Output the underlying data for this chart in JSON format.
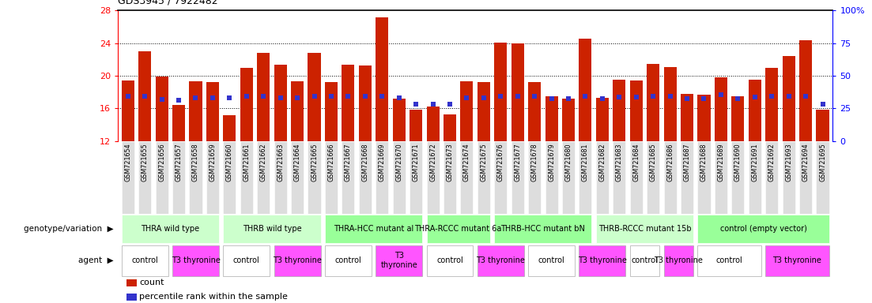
{
  "title": "GDS3945 / 7922482",
  "samples": [
    "GSM721654",
    "GSM721655",
    "GSM721656",
    "GSM721657",
    "GSM721658",
    "GSM721659",
    "GSM721660",
    "GSM721661",
    "GSM721662",
    "GSM721663",
    "GSM721664",
    "GSM721665",
    "GSM721666",
    "GSM721667",
    "GSM721668",
    "GSM721669",
    "GSM721670",
    "GSM721671",
    "GSM721672",
    "GSM721673",
    "GSM721674",
    "GSM721675",
    "GSM721676",
    "GSM721677",
    "GSM721678",
    "GSM721679",
    "GSM721680",
    "GSM721681",
    "GSM721682",
    "GSM721683",
    "GSM721684",
    "GSM721685",
    "GSM721686",
    "GSM721687",
    "GSM721688",
    "GSM721689",
    "GSM721690",
    "GSM721691",
    "GSM721692",
    "GSM721693",
    "GSM721694",
    "GSM721695"
  ],
  "bar_values": [
    19.4,
    23.0,
    19.9,
    16.4,
    19.3,
    19.2,
    15.2,
    21.0,
    22.8,
    21.4,
    19.3,
    22.8,
    19.2,
    21.4,
    21.3,
    27.2,
    17.2,
    15.8,
    16.2,
    15.3,
    19.3,
    19.2,
    24.1,
    24.0,
    19.2,
    17.5,
    17.2,
    24.6,
    17.3,
    19.5,
    19.4,
    21.5,
    21.1,
    17.8,
    17.7,
    19.8,
    17.5,
    19.5,
    21.0,
    22.4,
    24.4,
    15.8
  ],
  "blue_dot_values": [
    17.5,
    17.5,
    17.1,
    17.0,
    17.3,
    17.3,
    17.3,
    17.5,
    17.5,
    17.3,
    17.3,
    17.5,
    17.5,
    17.5,
    17.5,
    17.5,
    17.3,
    16.5,
    16.5,
    16.5,
    17.3,
    17.3,
    17.5,
    17.5,
    17.5,
    17.2,
    17.2,
    17.5,
    17.2,
    17.4,
    17.4,
    17.5,
    17.5,
    17.2,
    17.2,
    17.7,
    17.2,
    17.4,
    17.5,
    17.5,
    17.5,
    16.5
  ],
  "ylim_left": [
    12,
    28
  ],
  "ylim_right": [
    0,
    100
  ],
  "yticks_left": [
    12,
    16,
    20,
    24,
    28
  ],
  "yticks_right": [
    0,
    25,
    50,
    75,
    100
  ],
  "ytick_labels_right": [
    "0",
    "25",
    "50",
    "75",
    "100%"
  ],
  "bar_color": "#cc2200",
  "dot_color": "#3333cc",
  "genotype_groups": [
    {
      "label": "THRA wild type",
      "start": 0,
      "end": 5,
      "color": "#ccffcc"
    },
    {
      "label": "THRB wild type",
      "start": 6,
      "end": 11,
      "color": "#ccffcc"
    },
    {
      "label": "THRA-HCC mutant al",
      "start": 12,
      "end": 17,
      "color": "#99ff99"
    },
    {
      "label": "THRA-RCCC mutant 6a",
      "start": 18,
      "end": 21,
      "color": "#99ff99"
    },
    {
      "label": "THRB-HCC mutant bN",
      "start": 22,
      "end": 27,
      "color": "#99ff99"
    },
    {
      "label": "THRB-RCCC mutant 15b",
      "start": 28,
      "end": 33,
      "color": "#ccffcc"
    },
    {
      "label": "control (empty vector)",
      "start": 34,
      "end": 41,
      "color": "#99ff99"
    }
  ],
  "agent_groups": [
    {
      "label": "control",
      "start": 0,
      "end": 2,
      "color": "#ffffff"
    },
    {
      "label": "T3 thyronine",
      "start": 3,
      "end": 5,
      "color": "#ff55ff"
    },
    {
      "label": "control",
      "start": 6,
      "end": 8,
      "color": "#ffffff"
    },
    {
      "label": "T3 thyronine",
      "start": 9,
      "end": 11,
      "color": "#ff55ff"
    },
    {
      "label": "control",
      "start": 12,
      "end": 14,
      "color": "#ffffff"
    },
    {
      "label": "T3\nthyronine",
      "start": 15,
      "end": 17,
      "color": "#ff55ff"
    },
    {
      "label": "control",
      "start": 18,
      "end": 20,
      "color": "#ffffff"
    },
    {
      "label": "T3 thyronine",
      "start": 21,
      "end": 23,
      "color": "#ff55ff"
    },
    {
      "label": "control",
      "start": 24,
      "end": 26,
      "color": "#ffffff"
    },
    {
      "label": "T3 thyronine",
      "start": 27,
      "end": 29,
      "color": "#ff55ff"
    },
    {
      "label": "control",
      "start": 30,
      "end": 31,
      "color": "#ffffff"
    },
    {
      "label": "T3 thyronine",
      "start": 32,
      "end": 33,
      "color": "#ff55ff"
    },
    {
      "label": "control",
      "start": 34,
      "end": 37,
      "color": "#ffffff"
    },
    {
      "label": "T3 thyronine",
      "start": 38,
      "end": 41,
      "color": "#ff55ff"
    }
  ]
}
